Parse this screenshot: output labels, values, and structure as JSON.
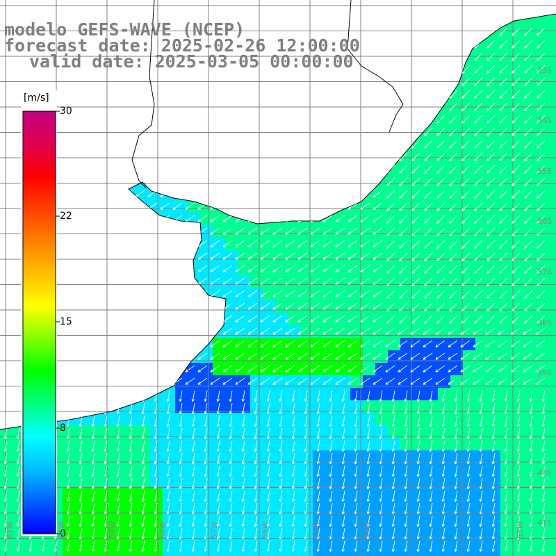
{
  "titles": {
    "line1": "modelo GEFS-WAVE (NCEP)",
    "line2": "forecast date: 2025-02-26 12:00:00",
    "line3": "valid date: 2025-03-05 00:00:00"
  },
  "colorbar": {
    "unit": "[m/s]",
    "ticks": [
      "30",
      "22",
      "15",
      "8",
      "0"
    ],
    "tick_values": [
      30,
      22,
      15,
      8,
      0
    ],
    "colors": [
      "#0000ff",
      "#0060ff",
      "#00c0ff",
      "#00ffff",
      "#00ff80",
      "#00ff00",
      "#80ff00",
      "#ffff00",
      "#ffc000",
      "#ff8000",
      "#ff4000",
      "#ff0000",
      "#e00050",
      "#c00080"
    ]
  },
  "axes": {
    "lat_labels": [
      "33S",
      "34S",
      "35S",
      "36S",
      "37S",
      "38S",
      "39S",
      "40S",
      "41S"
    ],
    "lon_labels": [
      "61W",
      "60W",
      "59W",
      "58W",
      "57W",
      "56W",
      "55W",
      "54W",
      "53W"
    ]
  },
  "wind_field": {
    "description_colors": {
      "calm": "#0050ff",
      "moderate_low": "#00a0ff",
      "moderate": "#00e8ff",
      "fresh": "#00ff90",
      "strong": "#00ff00"
    },
    "dominant_direction": "from northeast toward southwest",
    "speed_range_ms": [
      5,
      13
    ]
  }
}
